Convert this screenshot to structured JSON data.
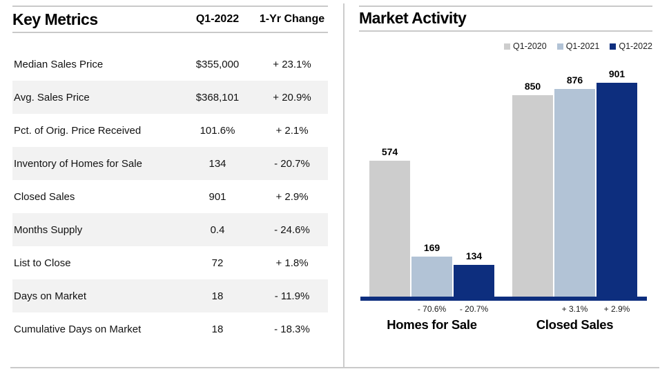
{
  "left_panel": {
    "title": "Key Metrics",
    "col_headers": [
      "Q1-2022",
      "1-Yr Change"
    ],
    "rows": [
      {
        "label": "Median Sales Price",
        "value": "$355,000",
        "change": "+ 23.1%"
      },
      {
        "label": "Avg. Sales Price",
        "value": "$368,101",
        "change": "+ 20.9%"
      },
      {
        "label": "Pct. of Orig. Price Received",
        "value": "101.6%",
        "change": "+ 2.1%"
      },
      {
        "label": "Inventory of Homes for Sale",
        "value": "134",
        "change": "- 20.7%"
      },
      {
        "label": "Closed Sales",
        "value": "901",
        "change": "+ 2.9%"
      },
      {
        "label": "Months Supply",
        "value": "0.4",
        "change": "- 24.6%"
      },
      {
        "label": "List to Close",
        "value": "72",
        "change": "+ 1.8%"
      },
      {
        "label": "Days on Market",
        "value": "18",
        "change": "- 11.9%"
      },
      {
        "label": "Cumulative Days on Market",
        "value": "18",
        "change": "- 18.3%"
      }
    ]
  },
  "right_panel": {
    "title": "Market Activity",
    "legend": [
      {
        "label": "Q1-2020",
        "color": "#cdcdcd"
      },
      {
        "label": "Q1-2021",
        "color": "#b2c3d6"
      },
      {
        "label": "Q1-2022",
        "color": "#0d2e7e"
      }
    ],
    "chart_data": {
      "type": "bar",
      "categories": [
        "Homes for Sale",
        "Closed Sales"
      ],
      "series": [
        {
          "name": "Q1-2020",
          "color": "#cdcdcd",
          "values": [
            574,
            850
          ]
        },
        {
          "name": "Q1-2021",
          "color": "#b2c3d6",
          "values": [
            169,
            876
          ]
        },
        {
          "name": "Q1-2022",
          "color": "#0d2e7e",
          "values": [
            134,
            901
          ]
        }
      ],
      "change_labels": [
        [
          "",
          "- 70.6%",
          "- 20.7%"
        ],
        [
          "",
          "+ 3.1%",
          "+ 2.9%"
        ]
      ],
      "title": "Market Activity",
      "xlabel": "",
      "ylabel": "",
      "ylim": [
        0,
        950
      ],
      "grid": false,
      "legend_position": "top-right",
      "axis_color": "#0d2e7e",
      "value_labels_shown": true
    }
  },
  "colors": {
    "navy": "#0d2e7e",
    "light_blue": "#b2c3d6",
    "bar_gray": "#cdcdcd",
    "row_alt": "#f2f2f2",
    "rule_gray": "#c9c9c9"
  }
}
